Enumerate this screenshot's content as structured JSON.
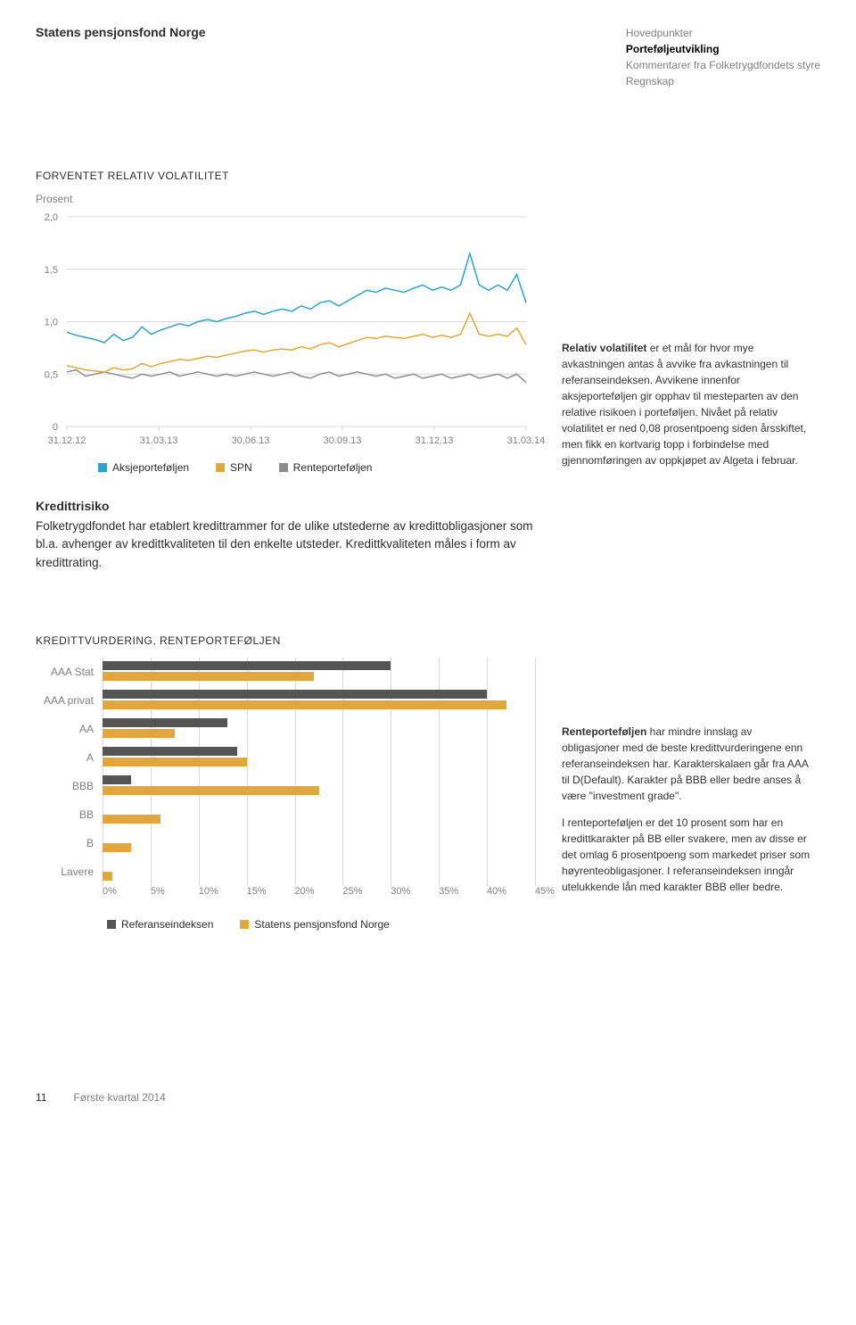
{
  "header": {
    "left": "Statens pensjonsfond Norge",
    "right": [
      {
        "label": "Hovedpunkter",
        "active": false
      },
      {
        "label": "Porteføljeutvikling",
        "active": true
      },
      {
        "label": "Kommentarer fra Folketrygdfondets styre",
        "active": false
      },
      {
        "label": "Regnskap",
        "active": false
      }
    ]
  },
  "vol_chart": {
    "title": "FORVENTET RELATIV VOLATILITET",
    "subtitle": "Prosent",
    "yticks": [
      "2,0",
      "1,5",
      "1,0",
      "0,5",
      "0"
    ],
    "xticks": [
      "31.12.12",
      "31.03.13",
      "30.06.13",
      "30.09.13",
      "31.12.13",
      "31.03.14"
    ],
    "ymin": 0,
    "ymax": 2.0,
    "colors": {
      "aksje": "#2ca3d1",
      "spn": "#e0a838",
      "rente": "#8d8d8d",
      "grid": "#d9d9d9",
      "axis_text": "#808080"
    },
    "legend": [
      {
        "label": "Aksjeporteføljen",
        "color": "#2ca3d1"
      },
      {
        "label": "SPN",
        "color": "#e0a838"
      },
      {
        "label": "Renteporteføljen",
        "color": "#8d8d8d"
      }
    ],
    "series": {
      "aksje": [
        0.9,
        0.87,
        0.85,
        0.83,
        0.8,
        0.88,
        0.82,
        0.85,
        0.95,
        0.88,
        0.92,
        0.95,
        0.98,
        0.96,
        1.0,
        1.02,
        1.0,
        1.03,
        1.05,
        1.08,
        1.1,
        1.07,
        1.1,
        1.12,
        1.1,
        1.15,
        1.12,
        1.18,
        1.2,
        1.15,
        1.2,
        1.25,
        1.3,
        1.28,
        1.32,
        1.3,
        1.28,
        1.32,
        1.35,
        1.3,
        1.33,
        1.3,
        1.35,
        1.65,
        1.35,
        1.3,
        1.35,
        1.3,
        1.45,
        1.18
      ],
      "spn": [
        0.58,
        0.56,
        0.54,
        0.53,
        0.52,
        0.56,
        0.54,
        0.55,
        0.6,
        0.57,
        0.6,
        0.62,
        0.64,
        0.63,
        0.65,
        0.67,
        0.66,
        0.68,
        0.7,
        0.72,
        0.73,
        0.71,
        0.73,
        0.74,
        0.73,
        0.76,
        0.74,
        0.78,
        0.8,
        0.76,
        0.79,
        0.82,
        0.85,
        0.84,
        0.86,
        0.85,
        0.84,
        0.86,
        0.88,
        0.85,
        0.87,
        0.85,
        0.88,
        1.08,
        0.88,
        0.86,
        0.88,
        0.86,
        0.94,
        0.78
      ],
      "rente": [
        0.52,
        0.54,
        0.48,
        0.5,
        0.52,
        0.5,
        0.48,
        0.46,
        0.5,
        0.48,
        0.5,
        0.52,
        0.48,
        0.5,
        0.52,
        0.5,
        0.48,
        0.5,
        0.48,
        0.5,
        0.52,
        0.5,
        0.48,
        0.5,
        0.52,
        0.48,
        0.46,
        0.5,
        0.52,
        0.48,
        0.5,
        0.52,
        0.5,
        0.48,
        0.5,
        0.46,
        0.48,
        0.5,
        0.46,
        0.48,
        0.5,
        0.46,
        0.48,
        0.5,
        0.46,
        0.48,
        0.5,
        0.46,
        0.5,
        0.42
      ]
    }
  },
  "side_note_vol": "Relativ volatilitet er et mål for hvor mye avkastningen antas å avvike fra avkastningen til referanseindeksen. Avvikene innenfor aksjeporteføljen gir opphav til mesteparten av den relative risikoen i porteføljen. Nivået på relativ volatilitet er ned 0,08 prosentpoeng siden årsskiftet, men fikk en kortvarig topp i forbindelse med gjennomføringen av oppkjøpet av Algeta i februar.",
  "side_note_vol_bold": "Relativ volatilitet",
  "kredittrisiko": {
    "heading": "Kredittrisiko",
    "body": "Folketrygdfondet har etablert kredittrammer for de ulike utstederne av kredittobligasjoner som bl.a. avhenger av kredittkvaliteten til den enkelte utsteder. Kredittkvaliteten måles i form av kredittrating."
  },
  "credit_chart": {
    "title": "KREDITTVURDERING, RENTEPORTEFØLJEN",
    "xmax": 45,
    "xticks": [
      "0%",
      "5%",
      "10%",
      "15%",
      "20%",
      "25%",
      "30%",
      "35%",
      "40%",
      "45%"
    ],
    "colors": {
      "ref": "#545454",
      "port": "#e0a838",
      "grid": "#d9d9d9",
      "label": "#808080"
    },
    "categories": [
      {
        "label": "AAA Stat",
        "ref": 30,
        "port": 22
      },
      {
        "label": "AAA privat",
        "ref": 40,
        "port": 42
      },
      {
        "label": "AA",
        "ref": 13,
        "port": 7.5
      },
      {
        "label": "A",
        "ref": 14,
        "port": 15
      },
      {
        "label": "BBB",
        "ref": 3,
        "port": 22.5
      },
      {
        "label": "BB",
        "ref": 0,
        "port": 6
      },
      {
        "label": "B",
        "ref": 0,
        "port": 3
      },
      {
        "label": "Lavere",
        "ref": 0,
        "port": 1
      }
    ],
    "legend": [
      {
        "label": "Referanseindeksen",
        "color": "#545454"
      },
      {
        "label": "Statens pensjonsfond Norge",
        "color": "#e0a838"
      }
    ]
  },
  "side_note_credit_bold": "Renteporteføljen",
  "side_note_credit_p1": " har mindre innslag av obligasjoner med de beste kredittvurderingene enn referanseindeksen har. Karakterskalaen går fra AAA til D(Default). Karakter på BBB eller bedre anses å være \"investment grade\".",
  "side_note_credit_p2": "I renteporteføljen er det 10 prosent som har en kredittkarakter på BB eller svakere, men av disse er det omlag 6 prosentpoeng som markedet priser som høyrenteobligasjoner. I referanseindeksen inngår utelukkende lån med karakter BBB eller bedre.",
  "footer": {
    "page": "11",
    "label": "Første kvartal 2014"
  }
}
